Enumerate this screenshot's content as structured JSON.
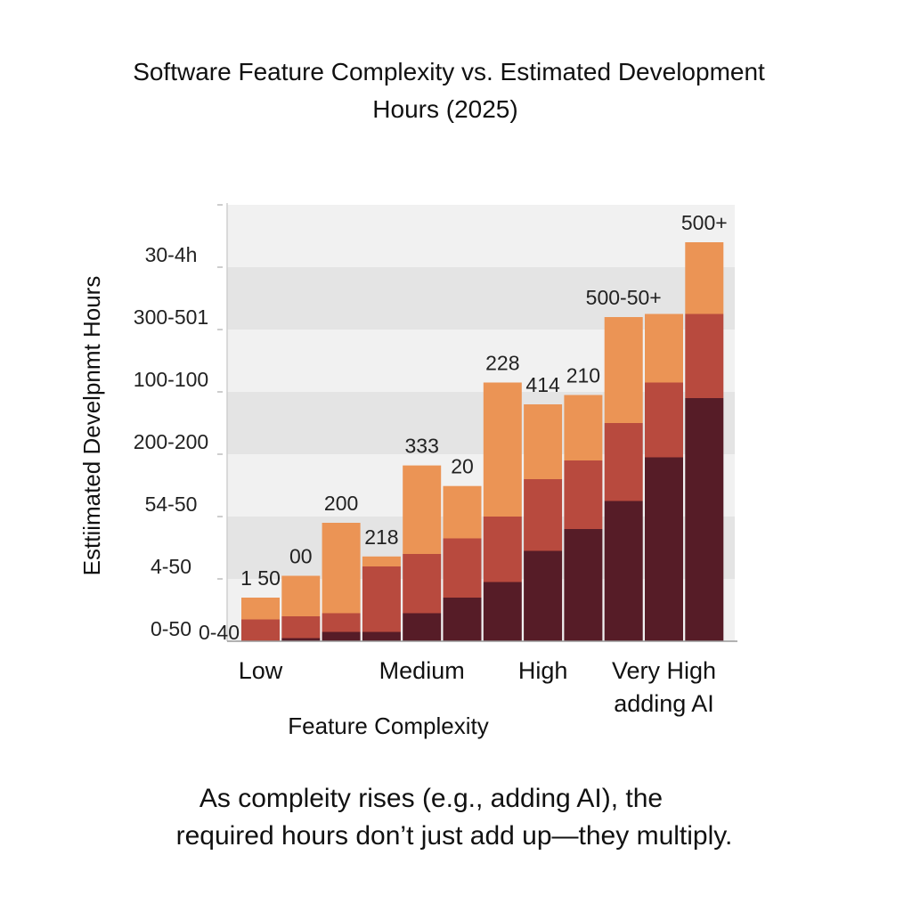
{
  "chart_data": {
    "type": "bar",
    "stacked": true,
    "title_lines": [
      "Software Feature Complexity vs. Estimated Development",
      "Hours (2025)"
    ],
    "ylabel": "Esttiimated Develpnmt Hours",
    "xlabel": "Feature Complexity",
    "y_tick_labels": [
      "0-50",
      "4-50",
      "54-50",
      "200-200",
      "100-100",
      "300-501",
      "30-4h"
    ],
    "ylim": [
      0,
      7
    ],
    "x_category_labels": [
      {
        "lines": [
          "Low"
        ],
        "bar_index": 0
      },
      {
        "lines": [
          "Medium"
        ],
        "bar_index": 4
      },
      {
        "lines": [
          "High"
        ],
        "bar_index": 7
      },
      {
        "lines": [
          "Very High",
          "adding AI"
        ],
        "bar_index": 10
      }
    ],
    "series": [
      {
        "color": "#561c27",
        "values": [
          0.0,
          0.05,
          0.15,
          0.15,
          0.45,
          0.7,
          0.95,
          1.45,
          1.8,
          2.25,
          2.95,
          3.9
        ]
      },
      {
        "color": "#b84a3e",
        "values": [
          0.35,
          0.35,
          0.3,
          1.05,
          0.95,
          0.95,
          1.05,
          1.15,
          1.1,
          1.25,
          1.2,
          1.35
        ]
      },
      {
        "color": "#eb9455",
        "values": [
          0.35,
          0.65,
          1.45,
          0.16,
          1.42,
          0.84,
          2.15,
          1.2,
          1.05,
          1.7,
          1.1,
          1.15
        ]
      }
    ],
    "data_labels": [
      "1 50",
      "00",
      "200",
      "218",
      "333",
      "20",
      "228",
      "414",
      "210",
      "500-50+",
      "",
      "500+"
    ],
    "extra_labels": [
      "0-40"
    ],
    "grid": "horizontal bands",
    "legend": "none"
  },
  "caption_lines": [
    "As compleity rises (e.g., adding AI), the",
    "required hours don’t just add up—they multiply."
  ]
}
